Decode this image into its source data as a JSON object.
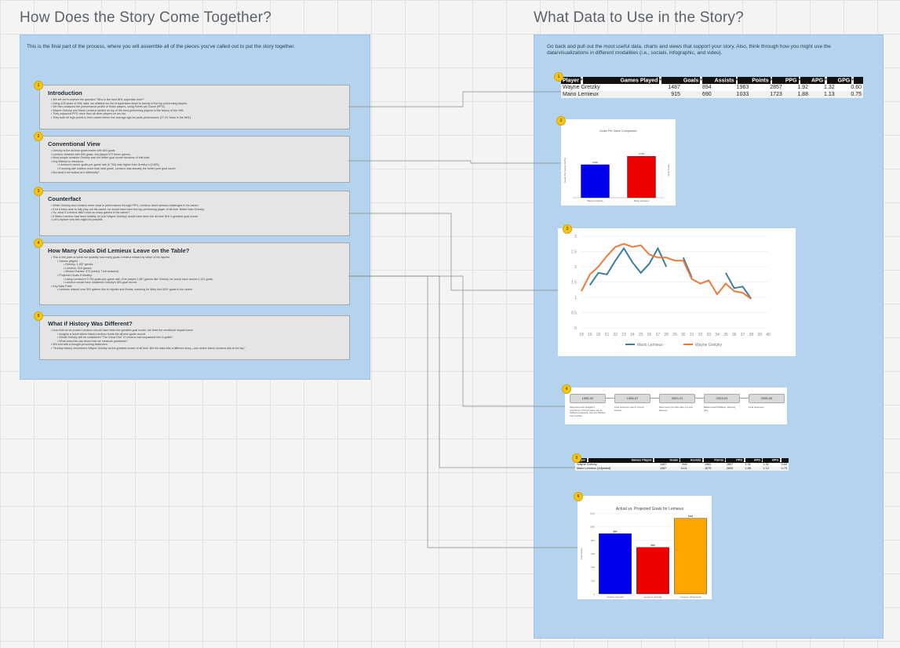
{
  "left": {
    "heading": "How Does the Story Come Together?",
    "intro": "This is the final part of the process, where you will assemble all of the pieces you've called out to put the story together.",
    "cards": [
      {
        "badge": "1",
        "title": "Introduction",
        "bullets": [
          "We set out to explore the question \"Who is the best NHL superstar ever?\"",
          "Using 105 years of NHL data, we whittled our list of superstars down to twenty of the top performing players.",
          "We then analyzed the performance profile of those players, using Points per Game (PPG).",
          "Wayne Gretzky and Mario Lemieux landed on top of the best-performing players in the history of the NHL.",
          "They outpaced PPG more than all other players on our list.",
          "They both hit high points in their career before the average age for peak performance (27-29 Years in the NHL)."
        ]
      },
      {
        "badge": "2",
        "title": "Conventional View",
        "bullets": [
          "Gretzky is the all-time goals leader with 894 goals.",
          "Lemieux finished with 690 goals--but played 572 fewer games.",
          "Most people consider Gretzky was the better goal scorer because of this total.",
          "Key Metrics to introduce:",
          "Lemieux's career goals-per-game rate (0.754) was higher than Gretzky's (0.601).",
          "If scoring rate matters more than total goals, Lemieux was actually the better pure goal scorer.",
          "But what if we looked at it differently?"
        ]
      },
      {
        "badge": "3",
        "title": "Counterfact",
        "bullets": [
          "While Gretzky and Lemieux were close in performance through PPG, Lemieux faced serious challenges in his career.",
          "If he'd been able to fully play out his career, he would have been the top-performing player of all time. Better than Gretzky.",
          "So, what if Lemieux didn't miss so many games in his career?",
          "If Mario Lemieux had been healthy, he (not Wayne Gretzky) would have been the all-time NHL's greatest goal scorer.",
          "Let's explore how this might be possible."
        ]
      },
      {
        "badge": "4",
        "title": "How Many Goals Did Lemieux Leave on the Table?",
        "bullets": [
          "This is the point at which we quantify how many goals Lemieux missed by virtue of his injuries.",
          "Games played:",
          "Gretzky: 1,487 games",
          "Lemieux: 915 games",
          "Missed Games: 572 (nearly 7 full seasons)",
          "Projected Goals if Healthy:",
          "Using Lemieux's 0.754 goals-per-game rate, if he played 1,487 games like Gretzky, he would have scored 1,121 goals.",
          "Lemieux would have shattered Gretzky's 894-goal record.",
          "Key Data Point:",
          "Lemieux missed over 500 games due to injuries and illness, meaning he likely lost 400+ goals in his career."
        ]
      },
      {
        "badge": "5",
        "title": "What if History Was Different?",
        "bullets": [
          "Now that we've proven Lemieux should have been the greatest goal scorer, we drive the emotional impact home:",
          "Imagine a world where Mario Lemieux holds the all-time goals record.",
          "Would Gretzky still be considered \"The Great One\" if Lemieux had surpassed him in goals?",
          "What does this say about how we measure greatness?",
          "We end with a thought-provoking statement:",
          "\"Hockey history remembers Wayne Gretzky as the greatest scorer of all time. But the data tells a different story—one where Mario Lemieux sits at the top.\""
        ]
      }
    ]
  },
  "right": {
    "heading": "What Data to Use in the Story?",
    "intro": "Go back and pull out the most useful data, charts and views that support your story. Also, think through how you might use the data/visualizations in different modalities (i.e., socials, infographic, and video).",
    "table1": {
      "badge": "1",
      "headers": [
        "Player",
        "Games Played",
        "Goals",
        "Assists",
        "Points",
        "PPG",
        "APG",
        "GPG"
      ],
      "rows": [
        [
          "Wayne Gretzky",
          "1487",
          "894",
          "1963",
          "2857",
          "1.92",
          "1.32",
          "0.60"
        ],
        [
          "Mario Lemieux",
          "915",
          "690",
          "1033",
          "1723",
          "1.88",
          "1.13",
          "0.75"
        ]
      ]
    },
    "chart1": {
      "badge": "2",
      "chart_data": {
        "type": "bar",
        "title": "Goals Per Game Comparison",
        "ylabel": "Goals Per Game (GPG)",
        "y2label": "Goal Scale",
        "categories": [
          "Wayne Gretzky",
          "Mario Lemieux"
        ],
        "values": [
          0.601,
          0.754
        ],
        "value_labels": [
          "0.601",
          "0.754"
        ],
        "colors": [
          "#0000ee",
          "#ee0000"
        ],
        "ylim": [
          0,
          1
        ]
      }
    },
    "chart2": {
      "badge": "3",
      "chart_data": {
        "type": "line",
        "x": [
          18,
          19,
          20,
          21,
          22,
          23,
          24,
          25,
          26,
          27,
          28,
          29,
          30,
          31,
          32,
          33,
          34,
          35,
          36,
          37,
          38,
          39,
          40
        ],
        "xticks": [
          "18",
          "19",
          "20",
          "21",
          "22",
          "23",
          "24",
          "25",
          "26",
          "27",
          "28",
          "29",
          "30",
          "31",
          "32",
          "33",
          "34",
          "35",
          "36",
          "37",
          "38",
          "39",
          "40"
        ],
        "yticks": [
          "0",
          "0.5",
          "1",
          "1.5",
          "2",
          "2.5",
          "3"
        ],
        "ylim": [
          0,
          3
        ],
        "series": [
          {
            "name": "Mario Lemieux",
            "color": "#3e7d98",
            "points": [
              [
                19,
                1.4
              ],
              [
                20,
                1.8
              ],
              [
                21,
                1.75
              ],
              [
                22,
                2.2
              ],
              [
                23,
                2.6
              ],
              [
                24,
                2.15
              ],
              [
                25,
                1.8
              ],
              [
                26,
                2.1
              ],
              [
                27,
                2.6
              ],
              [
                28,
                2.0
              ],
              [
                30,
                2.3
              ],
              [
                31,
                1.65
              ],
              [
                35,
                1.8
              ],
              [
                36,
                1.3
              ],
              [
                37,
                1.35
              ],
              [
                38,
                0.95
              ]
            ]
          },
          {
            "name": "Wayne Gretzky",
            "color": "#ee7a3a",
            "points": [
              [
                18,
                1.2
              ],
              [
                19,
                1.75
              ],
              [
                20,
                2.0
              ],
              [
                21,
                2.35
              ],
              [
                22,
                2.65
              ],
              [
                23,
                2.75
              ],
              [
                24,
                2.65
              ],
              [
                25,
                2.7
              ],
              [
                26,
                2.4
              ],
              [
                27,
                2.3
              ],
              [
                28,
                2.3
              ],
              [
                29,
                2.2
              ],
              [
                30,
                2.2
              ],
              [
                31,
                1.6
              ],
              [
                32,
                1.45
              ],
              [
                33,
                1.55
              ],
              [
                34,
                1.1
              ],
              [
                35,
                1.45
              ],
              [
                36,
                1.2
              ],
              [
                37,
                1.15
              ],
              [
                38,
                0.95
              ]
            ]
          }
        ]
      }
    },
    "timeline": {
      "badge": "4",
      "steps": [
        {
          "label": "1985-92",
          "desc": "Diagnosed with Hodgkin's lymphoma; returned same day as radiation treatment; won two Stanley Cup trophies."
        },
        {
          "label": "1996-97",
          "desc": "Final retirement due to chronic injuries."
        },
        {
          "label": "2000-01",
          "desc": "Returned to the NHL after a 3-year absence."
        },
        {
          "label": "2003-04",
          "desc": "Battled atrial fibrillation, affecting play."
        },
        {
          "label": "2005-06",
          "desc": "Final retirement."
        }
      ]
    },
    "table2": {
      "badge": "5",
      "headers": [
        "Player",
        "Games Played",
        "Goals",
        "Assists",
        "Points",
        "PPG",
        "APG",
        "GPG"
      ],
      "rows": [
        [
          "Wayne Gretzky",
          "1487",
          "894",
          "1963",
          "2857",
          "1.92",
          "1.32",
          "0.60"
        ],
        [
          "Mario Lemieux (Adjusted)",
          "1487",
          "1121",
          "1679",
          "2800",
          "1.88",
          "1.13",
          "0.75"
        ]
      ]
    },
    "chart3": {
      "badge": "6",
      "chart_data": {
        "type": "bar",
        "title": "Actual vs. Projected Goals for Lemieux",
        "ylabel": "Total Goals",
        "categories": [
          "Gretzky (Actual)",
          "Lemieux (Actual)",
          "Lemieux (Projected)"
        ],
        "values": [
          894,
          690,
          1121
        ],
        "value_labels": [
          "894",
          "690",
          "1121"
        ],
        "colors": [
          "#0000ee",
          "#ee0000",
          "#ffa500"
        ],
        "yticks": [
          "0",
          "200",
          "400",
          "600",
          "800",
          "1000",
          "1200"
        ],
        "ylim": [
          0,
          1200
        ]
      }
    }
  }
}
